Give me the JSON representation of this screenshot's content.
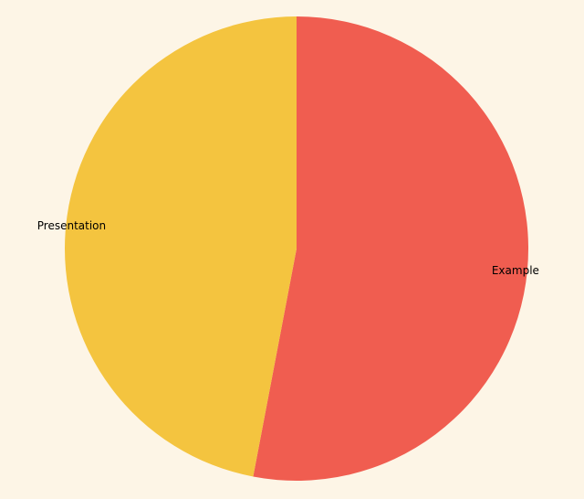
{
  "chart_data": {
    "type": "pie",
    "title": "",
    "slices": [
      {
        "label": "Example",
        "value": 53,
        "color": "#f05d50"
      },
      {
        "label": "Presentation",
        "value": 47,
        "color": "#f4c43f"
      }
    ]
  },
  "colors": {
    "background": "#fdf5e6"
  }
}
